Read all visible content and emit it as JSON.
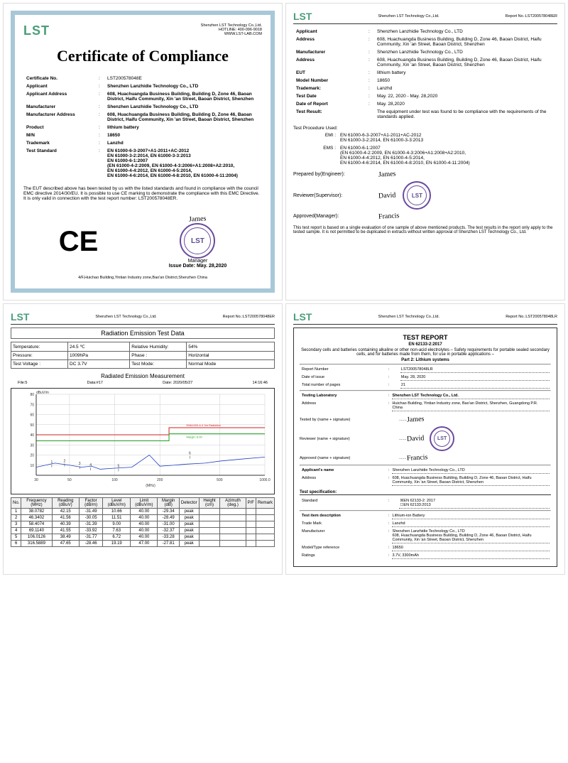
{
  "company": "Shenzhen LST Technology Co.,Ltd.",
  "hotline": "HOTLINE: 400-096-9018",
  "website": "WWW.LST-LAB.COM",
  "cert": {
    "title": "Certificate of Compliance",
    "fields": {
      "cert_no_label": "Certificate No.",
      "cert_no": "LST200578048E",
      "applicant_label": "Applicant",
      "applicant": "Shenzhen Lanzhidie Technology Co., LTD",
      "app_addr_label": "Applicant Address",
      "app_addr": "608, Huachuangda Business Building, Building D, Zone 46, Baoan District, Haifu Community, Xin 'an Street, Baoan District, Shenzhen",
      "manufacturer_label": "Manufacturer",
      "manufacturer": "Shenzhen Lanzhidie Technology Co., LTD",
      "mfr_addr_label": "Manufacturer Address",
      "mfr_addr": "608, Huachuangda Business Building, Building D, Zone 46, Baoan District, Haifu Community, Xin 'an Street, Baoan District, Shenzhen",
      "product_label": "Product",
      "product": "lithium battery",
      "mn_label": "M/N",
      "mn": "18650",
      "trademark_label": "Trademark",
      "trademark": "Lanzhd",
      "std_label": "Test Standard",
      "std1": "EN 61000-6-3-2007+A1-2011+AC-2012",
      "std2": "EN 61000-3-2:2014, EN 61000-3-3:2013",
      "std3": "EN 61000-6-1:2007",
      "std4": "(EN 61000-4-2:2009, EN 61000-4-3:2006+A1:2008+A2:2010,",
      "std5": "EN 61000-4-4:2012, EN 61000-4-5:2014,",
      "std6": "EN 61000-4-6:2014, EN 61000-4-8:2010, EN 61000-4-11:2004)"
    },
    "para": "The EUT described above has been tested by us with the listed standards and found in compliance with the council EMC directive 2014/30/EU. It is possible to use CE marking to demonstrate the compliance with this EMC Directive. It is only valid in connection with the test report number: LST200578048ER.",
    "issue_date": "Issue Date: May. 28,2020",
    "manager": "Manager",
    "footer": "4/F,Huichao Building,Yintian Industry zone,Bao'an District,Shenzhen China"
  },
  "report": {
    "report_no": "Report No.:LST200578048ER",
    "applicant_label": "Applicant",
    "applicant": "Shenzhen Lanzhidie Technology Co., LTD",
    "addr_label": "Address",
    "addr": "608, Huachuangda Business Building, Building D, Zone 46, Baoan District, Haifu Community, Xin 'an Street, Baoan District, Shenzhen",
    "manufacturer_label": "Manufacturer",
    "manufacturer": "Shenzhen Lanzhidie Technology Co., LTD",
    "addr2_label": "Address",
    "eut_label": "EUT",
    "eut": "lithium battery",
    "model_label": "Model Number",
    "model": "18650",
    "trademark_label": "Trademark:",
    "trademark": "Lanzhd",
    "test_date_label": "Test Date",
    "test_date": "May. 22, 2020 - May. 28,2020",
    "report_date_label": "Date of Report",
    "report_date": "May. 28,2020",
    "result_label": "Test Result:",
    "result": "The equipment under test was found to be compliance with the requirements of the standards applied.",
    "proc_label": "Test Procedure Used:",
    "emi_label": "EMI :",
    "emi1": "EN 61000-6-3-2007+A1-2011+AC-2012",
    "emi2": "EN 61000-3-2:2014, EN 61000-3-3:2013",
    "ems_label": "EMS :",
    "ems1": "EN 61000-6-1:2007",
    "ems2": "(EN 61000-4-2:2009, EN 61000-4-3:2006+A1:2008+A2:2010,",
    "ems3": "EN 61000-4-4:2012, EN 61000-4-5:2014,",
    "ems4": "EN 61000-4-6:2014, EN 61000-4-8:2010, EN 61000-4-11:2004)",
    "prep_label": "Prepared by(Engineer):",
    "rev_label": "Reviewer(Supervisor):",
    "app_label": "Approved(Manager):",
    "footer": "This test report is based on a single evaluation of one sample of above mentioned products. The test results in the report only apply to the tested sample. It is not permitted to be duplicated in extracts without written approval of Shenzhen LST Technology Co., Ltd."
  },
  "radiation": {
    "title": "Radiation Emission Test Data",
    "params": {
      "temp_label": "Temperature:",
      "temp": "24.5 ℃",
      "hum_label": "Relative Humidity:",
      "hum": "54%",
      "press_label": "Pressure:",
      "press": "1009hPa",
      "phase_label": "Phase :",
      "phase": "Horizontal",
      "volt_label": "Test Voltage :",
      "volt": "DC 3.7V",
      "mode_label": "Test Mode:",
      "mode": "Normal Mode"
    },
    "chart": {
      "title": "Radiated Emission Measurement",
      "file": "File:5",
      "data": "Data:#17",
      "date": "Date: 2020/05/27",
      "time": "14:16:46",
      "ylabel": "dBuV/m",
      "xlabel": "(MHz)",
      "ymax": 80,
      "ymin": 0,
      "ystep": 10,
      "xmin": 30,
      "xmax": 1000,
      "limit_red_label": "EN61000-6-3 3m Radiation",
      "margin_label": "Margin: 6.00",
      "colors": {
        "bg": "#ffffff",
        "grid": "#cccccc",
        "axis": "#333333",
        "trace": "#2040c0",
        "limit_red": "#d02020",
        "limit_green": "#20a020"
      },
      "limit_red_y1": 40,
      "limit_red_y2": 47,
      "limit_green_y1": 34,
      "limit_green_y2": 41,
      "trace_points": [
        [
          30,
          8
        ],
        [
          40,
          12
        ],
        [
          50,
          10
        ],
        [
          60,
          8
        ],
        [
          70,
          9
        ],
        [
          80,
          6
        ],
        [
          100,
          7
        ],
        [
          130,
          8
        ],
        [
          170,
          20
        ],
        [
          200,
          9
        ],
        [
          250,
          10
        ],
        [
          300,
          11
        ],
        [
          400,
          12
        ],
        [
          500,
          14
        ],
        [
          700,
          16
        ],
        [
          1000,
          18
        ]
      ]
    },
    "table": {
      "cols": [
        "No.",
        "Frequency (MHz)",
        "Reading (dBuV)",
        "Factor (dB/m)",
        "Level (dBuV/m)",
        "Limit (dBuV/m)",
        "Margin (dB)",
        "Detector",
        "Height (cm)",
        "Azimuth (deg.)",
        "P/F",
        "Remark"
      ],
      "rows": [
        [
          "1",
          "38.0782",
          "42.15",
          "-31.49",
          "10.66",
          "40.00",
          "-29.34",
          "peak",
          "",
          "",
          "",
          ""
        ],
        [
          "2",
          "46.3402",
          "41.56",
          "-30.05",
          "11.51",
          "40.00",
          "-28.49",
          "peak",
          "",
          "",
          "",
          ""
        ],
        [
          "3",
          "58.4074",
          "40.39",
          "-31.39",
          "9.00",
          "40.00",
          "-31.00",
          "peak",
          "",
          "",
          "",
          ""
        ],
        [
          "4",
          "69.1140",
          "41.55",
          "-33.92",
          "7.63",
          "40.00",
          "-32.37",
          "peak",
          "",
          "",
          "",
          ""
        ],
        [
          "5",
          "106.0126",
          "38.49",
          "-31.77",
          "6.72",
          "40.00",
          "-33.28",
          "peak",
          "",
          "",
          "",
          ""
        ],
        [
          "6",
          "316.5889",
          "47.65",
          "-28.46",
          "19.19",
          "47.00",
          "-27.81",
          "peak",
          "",
          "",
          "",
          ""
        ]
      ]
    }
  },
  "test_report": {
    "report_no": "Report No.:LST200578048LR",
    "title": "TEST REPORT",
    "std": "EN 62133-2:2017",
    "desc": "Secondary cells and batteries containing alkaline or other non-acid electrolytes – Safety requirements for portable sealed secondary cells, and for batteries made from them, for use in portable applications –",
    "part": "Part 2: Lithium systems",
    "fields": {
      "rn_label": "Report Number",
      "rn": "LST200578048LR",
      "date_label": "Date of issue",
      "date": "May. 28, 2020",
      "pages_label": "Total number of pages",
      "pages": "21",
      "lab_label": "Testing Laboratory",
      "lab": "Shenzhen LST Technology Co., Ltd.",
      "addr_label": "Address",
      "addr": "Huichao Building, Yintian Industry zone, Bao'an District, Shenzhen, Guangdong P.R. China",
      "tested_label": "Tested by (name + signature)",
      "reviewer_label": "Reviewer (name + signature)",
      "approved_label": "Approved (name + signature)",
      "app_name_label": "Applicant's name",
      "app_name": "Shenzhen Lanzhidie Technology Co., LTD",
      "app_addr_label": "Address",
      "app_addr": "608, Huachuangda Business Building, Building D, Zone 46, Baoan District, Haifu Community, Xin 'an Street, Baoan District, Shenzhen",
      "spec_label": "Test specification:",
      "std_label": "Standard",
      "std1": "EN 62133-2: 2017",
      "std2": "EN 62133:2013",
      "item_label": "Test item description",
      "item": "Lithium-ion Battery",
      "tm_label": "Trade Mark",
      "tm": "Lanzhd",
      "mfr_label": "Manufacturer",
      "mfr": "Shenzhen Lanzhidie Technology Co., LTD",
      "mfr_addr": "608, Huachuangda Business Building, Building D, Zone 46, Baoan District, Haifu Community, Xin 'an Street, Baoan District, Shenzhen",
      "model_label": "Model/Type reference",
      "model": "18650",
      "rating_label": "Ratings",
      "rating": "3.7V, 3300mAh"
    }
  }
}
